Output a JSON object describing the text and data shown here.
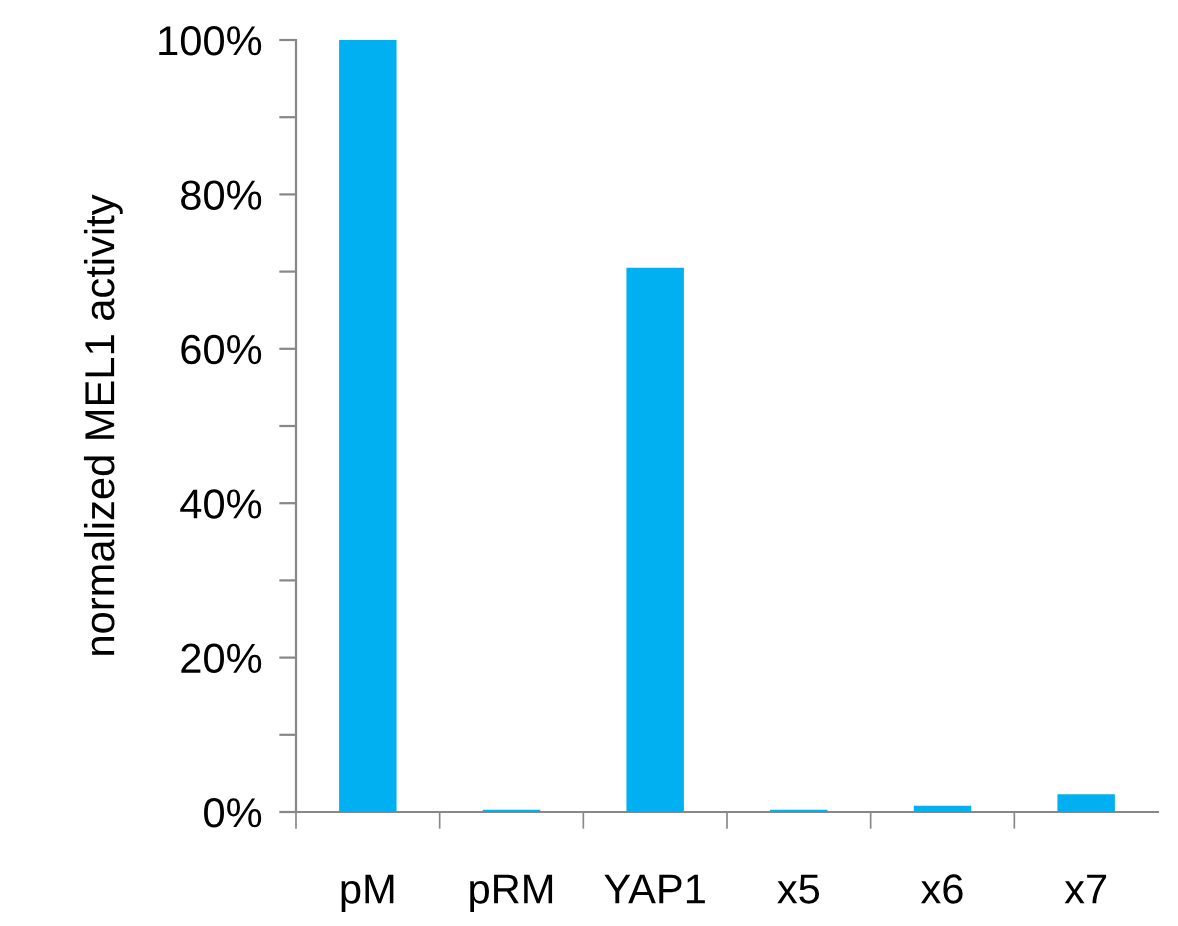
{
  "chart_data": {
    "type": "bar",
    "ylabel": "normalized MEL1 activity",
    "categories": [
      "pM",
      "pRM",
      "YAP1",
      "x5",
      "x6",
      "x7"
    ],
    "values": [
      100,
      0.3,
      70.5,
      0.3,
      0.8,
      2.3
    ],
    "color": "#00b0f0",
    "ylim": [
      0,
      100
    ],
    "yticks": [
      {
        "value": 0,
        "label": "0%"
      },
      {
        "value": 10,
        "label": null
      },
      {
        "value": 20,
        "label": "20%"
      },
      {
        "value": 30,
        "label": null
      },
      {
        "value": 40,
        "label": "40%"
      },
      {
        "value": 50,
        "label": null
      },
      {
        "value": 60,
        "label": "60%"
      },
      {
        "value": 70,
        "label": null
      },
      {
        "value": 80,
        "label": "80%"
      },
      {
        "value": 90,
        "label": null
      },
      {
        "value": 100,
        "label": "100%"
      }
    ],
    "grid": false,
    "legend": false
  }
}
